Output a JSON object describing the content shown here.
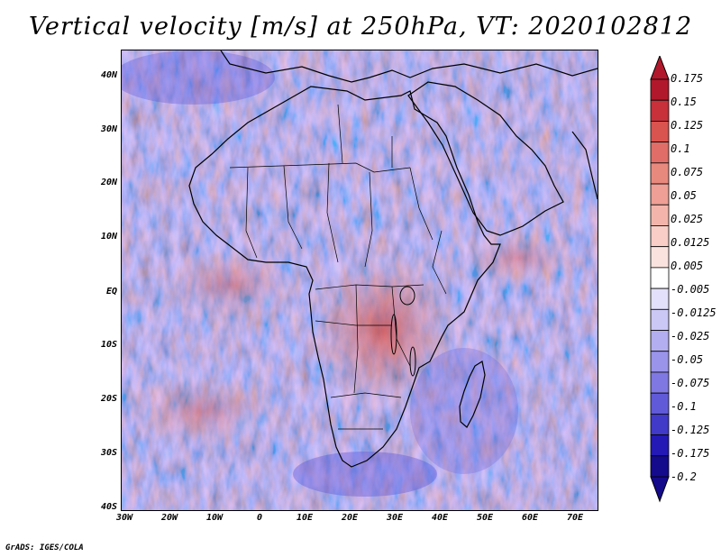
{
  "title": "Vertical velocity [m/s] at 250hPa, VT: 2020102812",
  "credit": "GrADS: IGES/COLA",
  "map": {
    "lat_labels": [
      "40N",
      "30N",
      "20N",
      "10N",
      "EQ",
      "10S",
      "20S",
      "30S",
      "40S"
    ],
    "lon_labels": [
      "30W",
      "20W",
      "10W",
      "0",
      "10E",
      "20E",
      "30E",
      "40E",
      "50E",
      "60E",
      "70E"
    ],
    "extent": {
      "lon_min": -30,
      "lon_max": 75,
      "lat_min": -40,
      "lat_max": 45
    }
  },
  "colorbar": {
    "labels": [
      "0.175",
      "0.15",
      "0.125",
      "0.1",
      "0.075",
      "0.05",
      "0.025",
      "0.0125",
      "0.005",
      "-0.005",
      "-0.0125",
      "-0.025",
      "-0.05",
      "-0.075",
      "-0.1",
      "-0.125",
      "-0.175",
      "-0.2"
    ],
    "colors": [
      "#b2182b",
      "#c8313a",
      "#d9534f",
      "#e06d67",
      "#e8897e",
      "#ef9f95",
      "#f3b5ab",
      "#f8cec6",
      "#fae3de",
      "#ffffff",
      "#e2e0fb",
      "#cbc8f6",
      "#b3aef0",
      "#9a94ea",
      "#7f78e2",
      "#615ad8",
      "#4139c8",
      "#2419b4",
      "#140a8c"
    ]
  }
}
